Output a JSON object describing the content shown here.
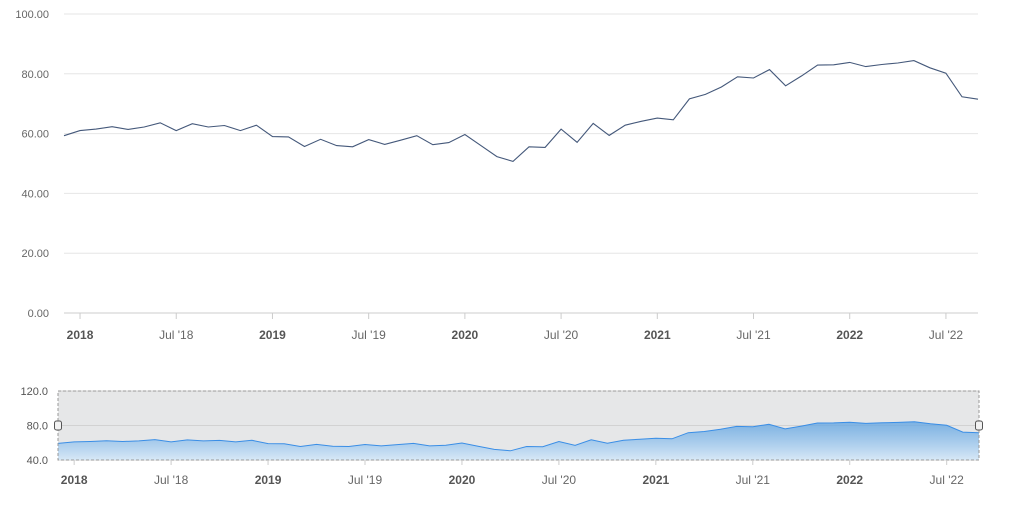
{
  "chart_data": [
    {
      "type": "line",
      "series": [
        {
          "values": [
            {
              "x": "2017-12",
              "y": 59.3
            },
            {
              "x": "2018-01",
              "y": 61.0
            },
            {
              "x": "2018-02",
              "y": 61.5
            },
            {
              "x": "2018-03",
              "y": 62.3
            },
            {
              "x": "2018-04",
              "y": 61.4
            },
            {
              "x": "2018-05",
              "y": 62.2
            },
            {
              "x": "2018-06",
              "y": 63.6
            },
            {
              "x": "2018-07",
              "y": 61.0
            },
            {
              "x": "2018-08",
              "y": 63.3
            },
            {
              "x": "2018-09",
              "y": 62.2
            },
            {
              "x": "2018-10",
              "y": 62.7
            },
            {
              "x": "2018-11",
              "y": 61.0
            },
            {
              "x": "2018-12",
              "y": 62.8
            },
            {
              "x": "2019-01",
              "y": 59.0
            },
            {
              "x": "2019-02",
              "y": 58.9
            },
            {
              "x": "2019-03",
              "y": 55.7
            },
            {
              "x": "2019-04",
              "y": 58.1
            },
            {
              "x": "2019-05",
              "y": 56.0
            },
            {
              "x": "2019-06",
              "y": 55.6
            },
            {
              "x": "2019-07",
              "y": 58.0
            },
            {
              "x": "2019-08",
              "y": 56.4
            },
            {
              "x": "2019-09",
              "y": 57.8
            },
            {
              "x": "2019-10",
              "y": 59.3
            },
            {
              "x": "2019-11",
              "y": 56.3
            },
            {
              "x": "2019-12",
              "y": 57.0
            },
            {
              "x": "2020-01",
              "y": 59.7
            },
            {
              "x": "2020-02",
              "y": 56.0
            },
            {
              "x": "2020-03",
              "y": 52.3
            },
            {
              "x": "2020-04",
              "y": 50.7
            },
            {
              "x": "2020-05",
              "y": 55.6
            },
            {
              "x": "2020-06",
              "y": 55.4
            },
            {
              "x": "2020-07",
              "y": 61.5
            },
            {
              "x": "2020-08",
              "y": 57.1
            },
            {
              "x": "2020-09",
              "y": 63.4
            },
            {
              "x": "2020-10",
              "y": 59.4
            },
            {
              "x": "2020-11",
              "y": 62.8
            },
            {
              "x": "2020-12",
              "y": 64.1
            },
            {
              "x": "2021-01",
              "y": 65.2
            },
            {
              "x": "2021-02",
              "y": 64.6
            },
            {
              "x": "2021-03",
              "y": 71.6
            },
            {
              "x": "2021-04",
              "y": 73.1
            },
            {
              "x": "2021-05",
              "y": 75.6
            },
            {
              "x": "2021-06",
              "y": 79.0
            },
            {
              "x": "2021-07",
              "y": 78.6
            },
            {
              "x": "2021-08",
              "y": 81.4
            },
            {
              "x": "2021-09",
              "y": 76.0
            },
            {
              "x": "2021-10",
              "y": 79.3
            },
            {
              "x": "2021-11",
              "y": 82.9
            },
            {
              "x": "2021-12",
              "y": 83.0
            },
            {
              "x": "2022-01",
              "y": 83.8
            },
            {
              "x": "2022-02",
              "y": 82.4
            },
            {
              "x": "2022-03",
              "y": 83.1
            },
            {
              "x": "2022-04",
              "y": 83.6
            },
            {
              "x": "2022-05",
              "y": 84.4
            },
            {
              "x": "2022-06",
              "y": 82.0
            },
            {
              "x": "2022-07",
              "y": 80.2
            },
            {
              "x": "2022-08",
              "y": 72.3
            },
            {
              "x": "2022-09",
              "y": 71.5
            }
          ],
          "color": "#44587a"
        }
      ],
      "ylim": [
        0,
        100
      ],
      "yticks": [
        "0.00",
        "20.00",
        "40.00",
        "60.00",
        "80.00",
        "100.00"
      ],
      "xticks": [
        {
          "label": "2018",
          "x": "2018-01",
          "bold": true
        },
        {
          "label": "Jul '18",
          "x": "2018-07",
          "bold": false
        },
        {
          "label": "2019",
          "x": "2019-01",
          "bold": true
        },
        {
          "label": "Jul '19",
          "x": "2019-07",
          "bold": false
        },
        {
          "label": "2020",
          "x": "2020-01",
          "bold": true
        },
        {
          "label": "Jul '20",
          "x": "2020-07",
          "bold": false
        },
        {
          "label": "2021",
          "x": "2021-01",
          "bold": true
        },
        {
          "label": "Jul '21",
          "x": "2021-07",
          "bold": false
        },
        {
          "label": "2022",
          "x": "2022-01",
          "bold": true
        },
        {
          "label": "Jul '22",
          "x": "2022-07",
          "bold": false
        }
      ],
      "grid": true
    },
    {
      "type": "area",
      "role": "navigator",
      "ylim": [
        40,
        120
      ],
      "yticks": [
        "40.0",
        "80.0",
        "120.0"
      ],
      "fill_color": "#5aa0e0",
      "line_color": "#3a8ee6"
    }
  ]
}
